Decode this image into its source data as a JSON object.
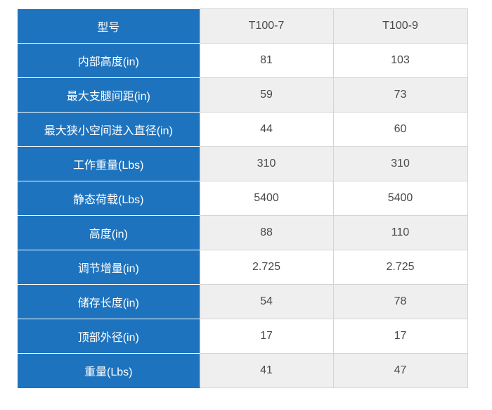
{
  "header": {
    "label": "型号",
    "model_1": "T100-7",
    "model_2": "T100-9"
  },
  "rows": [
    {
      "label": "内部高度(in)",
      "v1": "81",
      "v2": "103"
    },
    {
      "label": "最大支腿间距(in)",
      "v1": "59",
      "v2": "73"
    },
    {
      "label": "最大狭小空间进入直径(in)",
      "v1": "44",
      "v2": "60"
    },
    {
      "label": "工作重量(Lbs)",
      "v1": "310",
      "v2": "310"
    },
    {
      "label": "静态荷载(Lbs)",
      "v1": "5400",
      "v2": "5400"
    },
    {
      "label": "高度(in)",
      "v1": "88",
      "v2": "110"
    },
    {
      "label": "调节增量(in)",
      "v1": "2.725",
      "v2": "2.725"
    },
    {
      "label": "储存长度(in)",
      "v1": "54",
      "v2": "78"
    },
    {
      "label": "顶部外径(in)",
      "v1": "17",
      "v2": "17"
    },
    {
      "label": "重量(Lbs)",
      "v1": "41",
      "v2": "47"
    }
  ],
  "colors": {
    "label_bg": "#1e73be",
    "shade_bg": "#efefef",
    "border": "#d4d4d4"
  }
}
